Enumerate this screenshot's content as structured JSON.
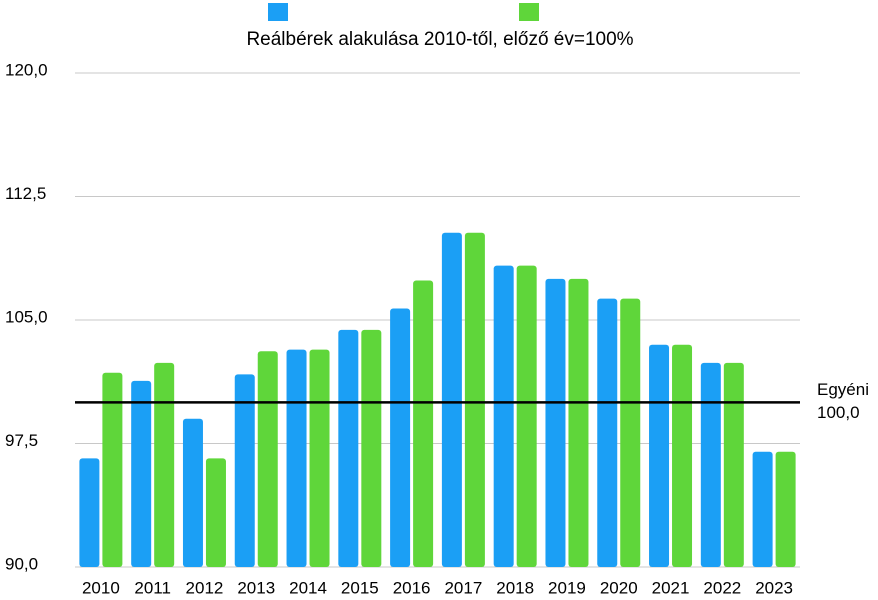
{
  "chart_data": {
    "type": "bar",
    "title": "Reálbérek alakulása 2010-től, előző év=100%",
    "categories": [
      "2010",
      "2011",
      "2012",
      "2013",
      "2014",
      "2015",
      "2016",
      "2017",
      "2018",
      "2019",
      "2020",
      "2021",
      "2022",
      "2023"
    ],
    "series": [
      {
        "color": "#1b9ff5",
        "values": [
          96.6,
          101.3,
          99.0,
          101.7,
          103.2,
          104.4,
          105.7,
          110.3,
          108.3,
          107.5,
          106.3,
          103.5,
          102.4,
          97.0
        ]
      },
      {
        "color": "#5fd63a",
        "values": [
          101.8,
          102.4,
          96.6,
          103.1,
          103.2,
          104.4,
          107.4,
          110.3,
          108.3,
          107.5,
          106.3,
          103.5,
          102.4,
          97.0
        ]
      }
    ],
    "ylim": [
      90,
      120
    ],
    "yticks": [
      {
        "value": 90,
        "label": "90,0"
      },
      {
        "value": 97.5,
        "label": "97,5"
      },
      {
        "value": 105,
        "label": "105,0"
      },
      {
        "value": 112.5,
        "label": "112,5"
      },
      {
        "value": 120,
        "label": "120,0"
      }
    ],
    "grid": true,
    "reference_line": {
      "value": 100,
      "label": "Egyéni",
      "value_label": "100,0"
    }
  }
}
